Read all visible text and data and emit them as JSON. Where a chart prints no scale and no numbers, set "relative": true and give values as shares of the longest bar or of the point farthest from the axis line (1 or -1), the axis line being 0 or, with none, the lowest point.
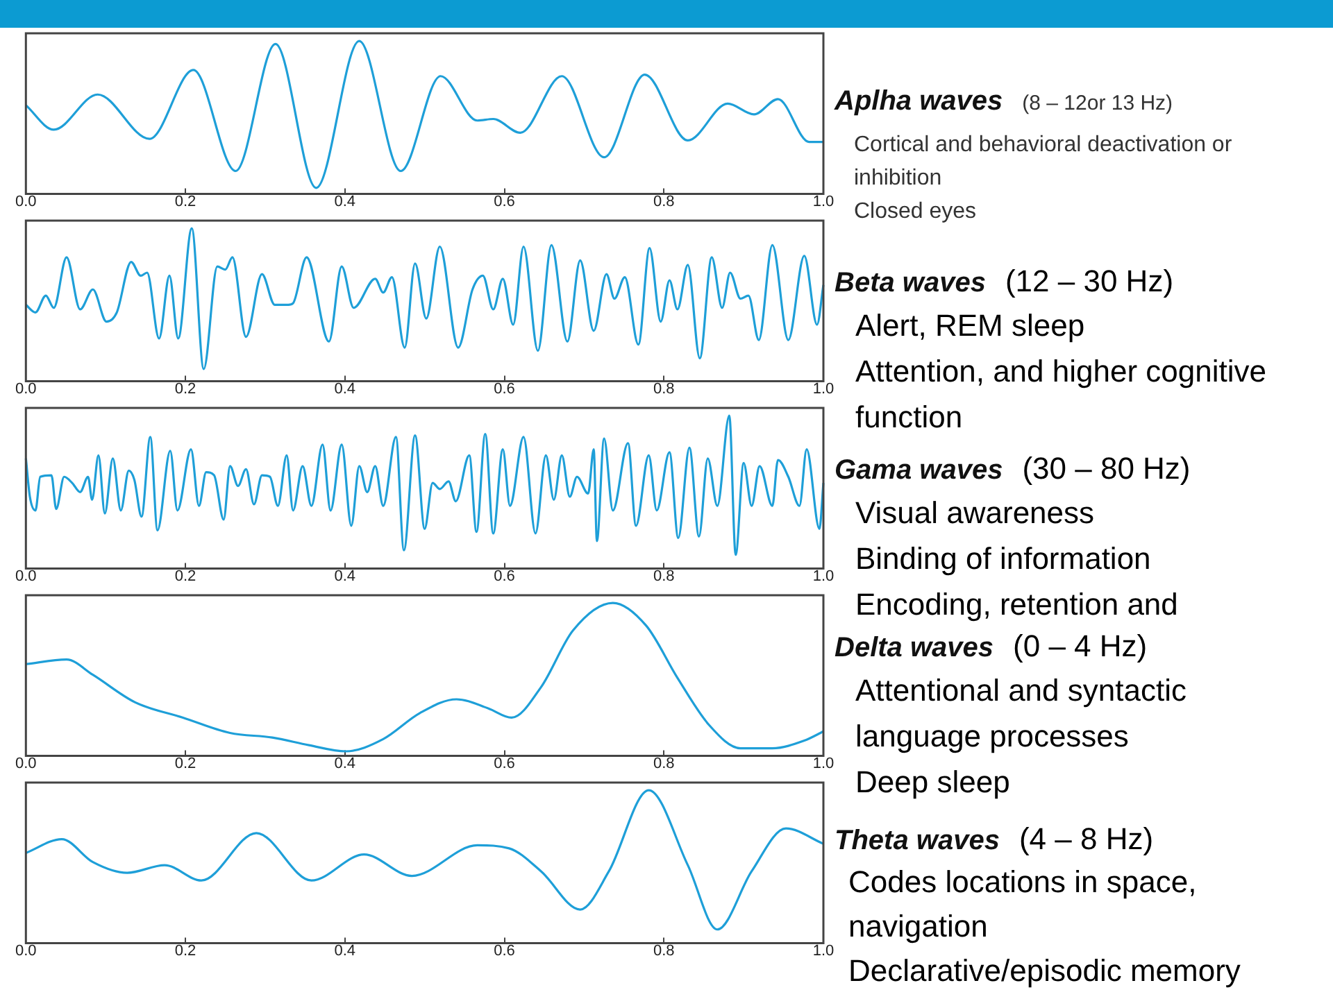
{
  "chart_data": [
    {
      "type": "line",
      "title": "Aplha waves",
      "annotations": [
        "(8 – 12or 13 Hz)",
        "Cortical and behavioral deactivation or inhibition",
        "Closed eyes"
      ],
      "relative": true,
      "marker": "none",
      "color": "#1e9fd8",
      "xlim": [
        0,
        1
      ],
      "xticks": [
        {
          "value": 0,
          "label": "0.0"
        },
        {
          "value": 0.2,
          "label": "0.2"
        },
        {
          "value": 0.4,
          "label": "0.4"
        },
        {
          "value": 0.6,
          "label": "0.6"
        },
        {
          "value": 0.8,
          "label": "0.8"
        },
        {
          "value": 1,
          "label": "1.0"
        }
      ],
      "x": [
        0,
        0.035,
        0.09,
        0.155,
        0.21,
        0.263,
        0.313,
        0.364,
        0.418,
        0.47,
        0.52,
        0.566,
        0.586,
        0.62,
        0.672,
        0.725,
        0.776,
        0.83,
        0.88,
        0.913,
        0.943,
        0.982,
        1
      ],
      "values": [
        0.58,
        0.42,
        0.65,
        0.36,
        0.81,
        0.15,
        0.98,
        0.04,
        1,
        0.15,
        0.77,
        0.48,
        0.49,
        0.4,
        0.77,
        0.24,
        0.78,
        0.35,
        0.59,
        0.52,
        0.62,
        0.34,
        0.34
      ]
    },
    {
      "type": "line",
      "title": "Beta waves",
      "annotations": [
        "(12 – 30 Hz)",
        "Alert, REM sleep",
        "Attention, and higher cognitive function"
      ],
      "relative": true,
      "marker": "none",
      "color": "#1e9fd8",
      "xlim": [
        0,
        1
      ],
      "xticks": [
        {
          "value": 0,
          "label": "0.0"
        },
        {
          "value": 0.2,
          "label": "0.2"
        },
        {
          "value": 0.4,
          "label": "0.4"
        },
        {
          "value": 0.6,
          "label": "0.6"
        },
        {
          "value": 0.8,
          "label": "0.8"
        },
        {
          "value": 1,
          "label": "1.0"
        }
      ],
      "x": [
        0,
        0.012,
        0.025,
        0.035,
        0.051,
        0.068,
        0.084,
        0.101,
        0.114,
        0.132,
        0.144,
        0.152,
        0.167,
        0.18,
        0.191,
        0.208,
        0.223,
        0.24,
        0.25,
        0.259,
        0.276,
        0.296,
        0.312,
        0.329,
        0.335,
        0.352,
        0.38,
        0.396,
        0.411,
        0.438,
        0.448,
        0.459,
        0.475,
        0.488,
        0.502,
        0.519,
        0.542,
        0.56,
        0.573,
        0.586,
        0.598,
        0.611,
        0.624,
        0.642,
        0.659,
        0.679,
        0.695,
        0.712,
        0.728,
        0.738,
        0.751,
        0.768,
        0.782,
        0.796,
        0.807,
        0.817,
        0.83,
        0.845,
        0.86,
        0.873,
        0.883,
        0.896,
        0.906,
        0.919,
        0.936,
        0.956,
        0.976,
        0.992,
        1
      ],
      "values": [
        0.5,
        0.45,
        0.56,
        0.48,
        0.81,
        0.47,
        0.6,
        0.39,
        0.45,
        0.78,
        0.69,
        0.71,
        0.28,
        0.69,
        0.28,
        1,
        0.08,
        0.75,
        0.73,
        0.81,
        0.29,
        0.7,
        0.5,
        0.5,
        0.51,
        0.81,
        0.26,
        0.75,
        0.48,
        0.67,
        0.58,
        0.68,
        0.22,
        0.77,
        0.41,
        0.88,
        0.22,
        0.6,
        0.69,
        0.47,
        0.67,
        0.37,
        0.88,
        0.2,
        0.89,
        0.26,
        0.79,
        0.33,
        0.7,
        0.54,
        0.68,
        0.24,
        0.87,
        0.39,
        0.66,
        0.47,
        0.76,
        0.15,
        0.81,
        0.48,
        0.71,
        0.54,
        0.56,
        0.27,
        0.89,
        0.27,
        0.82,
        0.37,
        0.63
      ]
    },
    {
      "type": "line",
      "title": "Gama waves",
      "annotations": [
        "(30 – 80 Hz)",
        "Visual awareness",
        "Binding of information",
        "Encoding, retention and"
      ],
      "relative": true,
      "marker": "none",
      "color": "#1e9fd8",
      "xlim": [
        0,
        1
      ],
      "xticks": [
        {
          "value": 0,
          "label": "0.0"
        },
        {
          "value": 0.2,
          "label": "0.2"
        },
        {
          "value": 0.4,
          "label": "0.4"
        },
        {
          "value": 0.6,
          "label": "0.6"
        },
        {
          "value": 0.8,
          "label": "0.8"
        },
        {
          "value": 1,
          "label": "1.0"
        }
      ],
      "x": [
        0,
        0.005,
        0.012,
        0.018,
        0.032,
        0.038,
        0.048,
        0.058,
        0.068,
        0.078,
        0.083,
        0.091,
        0.099,
        0.109,
        0.119,
        0.129,
        0.136,
        0.145,
        0.156,
        0.165,
        0.181,
        0.19,
        0.207,
        0.217,
        0.226,
        0.236,
        0.248,
        0.256,
        0.266,
        0.276,
        0.286,
        0.296,
        0.306,
        0.316,
        0.327,
        0.335,
        0.347,
        0.358,
        0.372,
        0.382,
        0.396,
        0.408,
        0.418,
        0.428,
        0.438,
        0.448,
        0.464,
        0.474,
        0.488,
        0.5,
        0.51,
        0.519,
        0.53,
        0.539,
        0.556,
        0.565,
        0.576,
        0.586,
        0.598,
        0.607,
        0.624,
        0.639,
        0.652,
        0.662,
        0.672,
        0.682,
        0.691,
        0.705,
        0.712,
        0.716,
        0.725,
        0.736,
        0.755,
        0.765,
        0.781,
        0.791,
        0.807,
        0.818,
        0.832,
        0.844,
        0.855,
        0.867,
        0.882,
        0.89,
        0.9,
        0.91,
        0.92,
        0.936,
        0.943,
        0.956,
        0.97,
        0.979,
        0.995,
        1
      ],
      "values": [
        0.72,
        0.47,
        0.38,
        0.6,
        0.61,
        0.39,
        0.6,
        0.56,
        0.5,
        0.6,
        0.45,
        0.74,
        0.36,
        0.72,
        0.38,
        0.64,
        0.58,
        0.34,
        0.86,
        0.25,
        0.77,
        0.38,
        0.78,
        0.41,
        0.63,
        0.61,
        0.32,
        0.67,
        0.54,
        0.65,
        0.42,
        0.61,
        0.6,
        0.41,
        0.74,
        0.38,
        0.67,
        0.41,
        0.81,
        0.38,
        0.81,
        0.28,
        0.67,
        0.5,
        0.67,
        0.41,
        0.86,
        0.12,
        0.87,
        0.26,
        0.56,
        0.52,
        0.57,
        0.44,
        0.74,
        0.24,
        0.88,
        0.23,
        0.78,
        0.41,
        0.86,
        0.23,
        0.74,
        0.45,
        0.74,
        0.47,
        0.6,
        0.49,
        0.78,
        0.18,
        0.85,
        0.38,
        0.82,
        0.28,
        0.74,
        0.38,
        0.76,
        0.2,
        0.79,
        0.21,
        0.72,
        0.41,
        1,
        0.09,
        0.69,
        0.41,
        0.67,
        0.41,
        0.71,
        0.6,
        0.41,
        0.78,
        0.26,
        0.56
      ]
    },
    {
      "type": "line",
      "title": "Delta waves",
      "annotations": [
        "(0 – 4 Hz)",
        "Attentional and syntactic language processes",
        "Deep sleep"
      ],
      "relative": true,
      "marker": "none",
      "color": "#1e9fd8",
      "xlim": [
        0,
        1
      ],
      "xticks": [
        {
          "value": 0,
          "label": "0.0"
        },
        {
          "value": 0.2,
          "label": "0.2"
        },
        {
          "value": 0.4,
          "label": "0.4"
        },
        {
          "value": 0.6,
          "label": "0.6"
        },
        {
          "value": 0.8,
          "label": "0.8"
        },
        {
          "value": 1,
          "label": "1.0"
        }
      ],
      "x": [
        0,
        0.051,
        0.084,
        0.137,
        0.197,
        0.256,
        0.309,
        0.355,
        0.401,
        0.448,
        0.494,
        0.54,
        0.58,
        0.609,
        0.646,
        0.686,
        0.736,
        0.778,
        0.817,
        0.857,
        0.896,
        0.936,
        0.976,
        1
      ],
      "values": [
        0.6,
        0.63,
        0.53,
        0.35,
        0.25,
        0.15,
        0.12,
        0.07,
        0.03,
        0.11,
        0.28,
        0.37,
        0.31,
        0.25,
        0.45,
        0.82,
        1,
        0.85,
        0.51,
        0.2,
        0.05,
        0.05,
        0.1,
        0.16
      ]
    },
    {
      "type": "line",
      "title": "Theta waves",
      "annotations": [
        "(4 – 8 Hz)",
        "Codes locations in space, navigation",
        "Declarative/episodic  memory"
      ],
      "relative": true,
      "marker": "none",
      "color": "#1e9fd8",
      "xlim": [
        0,
        1
      ],
      "xticks": [
        {
          "value": 0,
          "label": "0.0"
        },
        {
          "value": 0.2,
          "label": "0.2"
        },
        {
          "value": 0.4,
          "label": "0.4"
        },
        {
          "value": 0.6,
          "label": "0.6"
        },
        {
          "value": 0.8,
          "label": "0.8"
        },
        {
          "value": 1,
          "label": "1.0"
        }
      ],
      "x": [
        0,
        0.045,
        0.084,
        0.127,
        0.174,
        0.22,
        0.289,
        0.358,
        0.424,
        0.484,
        0.566,
        0.606,
        0.646,
        0.695,
        0.731,
        0.781,
        0.83,
        0.867,
        0.91,
        0.953,
        1
      ],
      "values": [
        0.59,
        0.68,
        0.53,
        0.46,
        0.51,
        0.41,
        0.72,
        0.41,
        0.58,
        0.44,
        0.64,
        0.62,
        0.47,
        0.22,
        0.47,
        1,
        0.51,
        0.09,
        0.47,
        0.75,
        0.65
      ]
    }
  ]
}
